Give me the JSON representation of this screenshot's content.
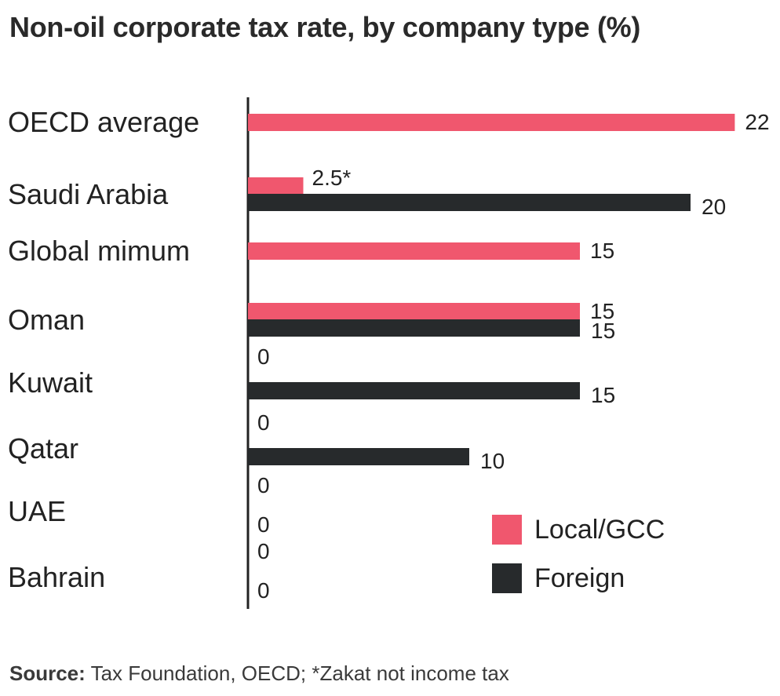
{
  "chart_data": {
    "type": "bar",
    "orientation": "horizontal",
    "title": "Non-oil corporate tax rate, by company type (%)",
    "categories": [
      "OECD average",
      "Saudi Arabia",
      "Global mimum",
      "Oman",
      "Kuwait",
      "Qatar",
      "UAE",
      "Bahrain"
    ],
    "series": [
      {
        "name": "Local/GCC",
        "color": "#f0576e",
        "values": [
          22,
          2.5,
          15,
          15,
          0,
          0,
          0,
          0
        ],
        "labels": [
          "22",
          "2.5*",
          "15",
          "15",
          "0",
          "0",
          "0",
          "0"
        ]
      },
      {
        "name": "Foreign",
        "color": "#272a2c",
        "values": [
          null,
          20,
          null,
          15,
          15,
          10,
          0,
          0
        ],
        "labels": [
          "",
          "20",
          "",
          "15",
          "15",
          "10",
          "0",
          "0"
        ]
      }
    ],
    "xlim": [
      0,
      22
    ],
    "grid": false,
    "legend_position": "bottom-right"
  },
  "source": {
    "label": "Source:",
    "text": " Tax Foundation, OECD; *Zakat not income tax"
  }
}
